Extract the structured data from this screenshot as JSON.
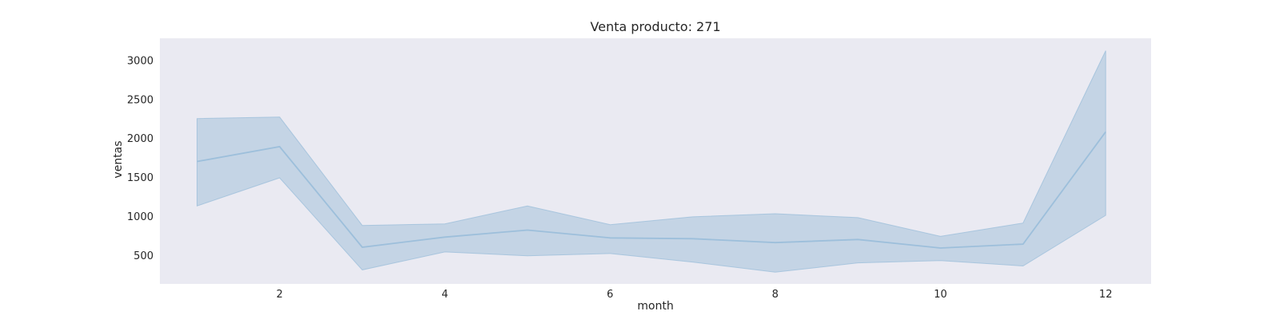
{
  "chart_data": {
    "type": "line",
    "title": "Venta producto: 271",
    "xlabel": "month",
    "ylabel": "ventas",
    "xlim": [
      0.55,
      12.55
    ],
    "ylim": [
      130,
      3280
    ],
    "x_ticks": [
      2,
      4,
      6,
      8,
      10,
      12
    ],
    "y_ticks": [
      500,
      1000,
      1500,
      2000,
      2500,
      3000
    ],
    "grid": false,
    "series": [
      {
        "x": [
          1,
          2,
          3,
          4,
          5,
          6,
          7,
          8,
          9,
          10,
          11,
          12
        ],
        "y": [
          1700,
          1890,
          600,
          730,
          820,
          720,
          710,
          660,
          700,
          590,
          640,
          2080
        ],
        "ci_lower": [
          1130,
          1490,
          310,
          540,
          490,
          520,
          410,
          280,
          400,
          430,
          360,
          1010
        ],
        "ci_upper": [
          2250,
          2270,
          880,
          900,
          1130,
          890,
          990,
          1030,
          980,
          740,
          910,
          3120
        ]
      }
    ],
    "colors": {
      "plot_background": "#eaeaf2",
      "line": "#9dbfdb",
      "band": "#c4d4e5",
      "band_edge": "#9dbfdb"
    }
  }
}
